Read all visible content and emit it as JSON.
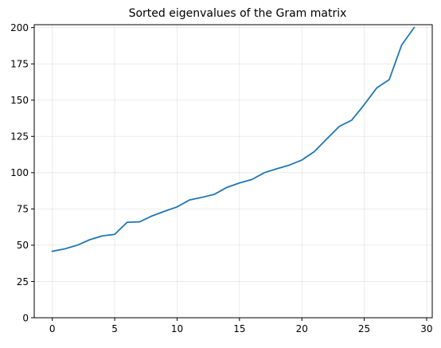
{
  "chart_data": {
    "type": "line",
    "title": "Sorted eigenvalues of the Gram matrix",
    "xlabel": "",
    "ylabel": "",
    "xlim": [
      -1.45,
      30.45
    ],
    "ylim": [
      0,
      202
    ],
    "x_ticks": [
      0,
      5,
      10,
      15,
      20,
      25,
      30
    ],
    "y_ticks": [
      0,
      25,
      50,
      75,
      100,
      125,
      150,
      175,
      200
    ],
    "grid": true,
    "legend": "none",
    "series": [
      {
        "color": "#1f77b4",
        "x": [
          0,
          1,
          2,
          3,
          4,
          5,
          6,
          7,
          8,
          9,
          10,
          11,
          12,
          13,
          14,
          15,
          16,
          17,
          18,
          19,
          20,
          21,
          22,
          23,
          24,
          25,
          26,
          27,
          28,
          29
        ],
        "values": [
          45.8,
          47.5,
          50.0,
          53.8,
          56.4,
          57.5,
          65.8,
          66.1,
          70.2,
          73.4,
          76.4,
          81.2,
          83.0,
          85.1,
          89.9,
          92.9,
          95.3,
          100.0,
          102.7,
          105.2,
          108.7,
          114.5,
          123.3,
          131.9,
          136.2,
          146.9,
          158.4,
          164.1,
          188.0,
          200.0
        ]
      }
    ]
  }
}
